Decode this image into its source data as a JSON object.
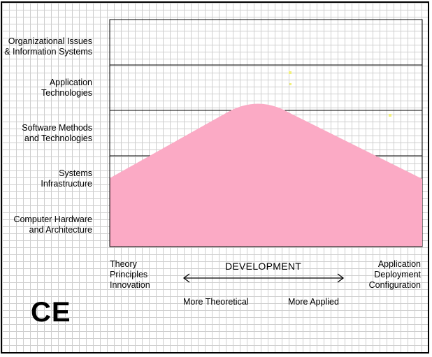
{
  "discipline": "CE",
  "rows": [
    {
      "line1": "Organizational Issues",
      "line2": "& Information Systems"
    },
    {
      "line1": "Application",
      "line2": "Technologies"
    },
    {
      "line1": "Software Methods",
      "line2": "and Technologies"
    },
    {
      "line1": "Systems",
      "line2": "Infrastructure"
    },
    {
      "line1": "Computer Hardware",
      "line2": "and Architecture"
    }
  ],
  "axis": {
    "left": [
      "Theory",
      "Principles",
      "Innovation"
    ],
    "right": [
      "Application",
      "Deployment",
      "Configuration"
    ],
    "center": "DEVELOPMENT",
    "left_arrow": "More Theoretical",
    "right_arrow": "More Applied"
  },
  "colors": {
    "region": "#fbaac5",
    "border": "#000000",
    "grid": "#cfcfcf",
    "dots": "#f2f07a"
  }
}
